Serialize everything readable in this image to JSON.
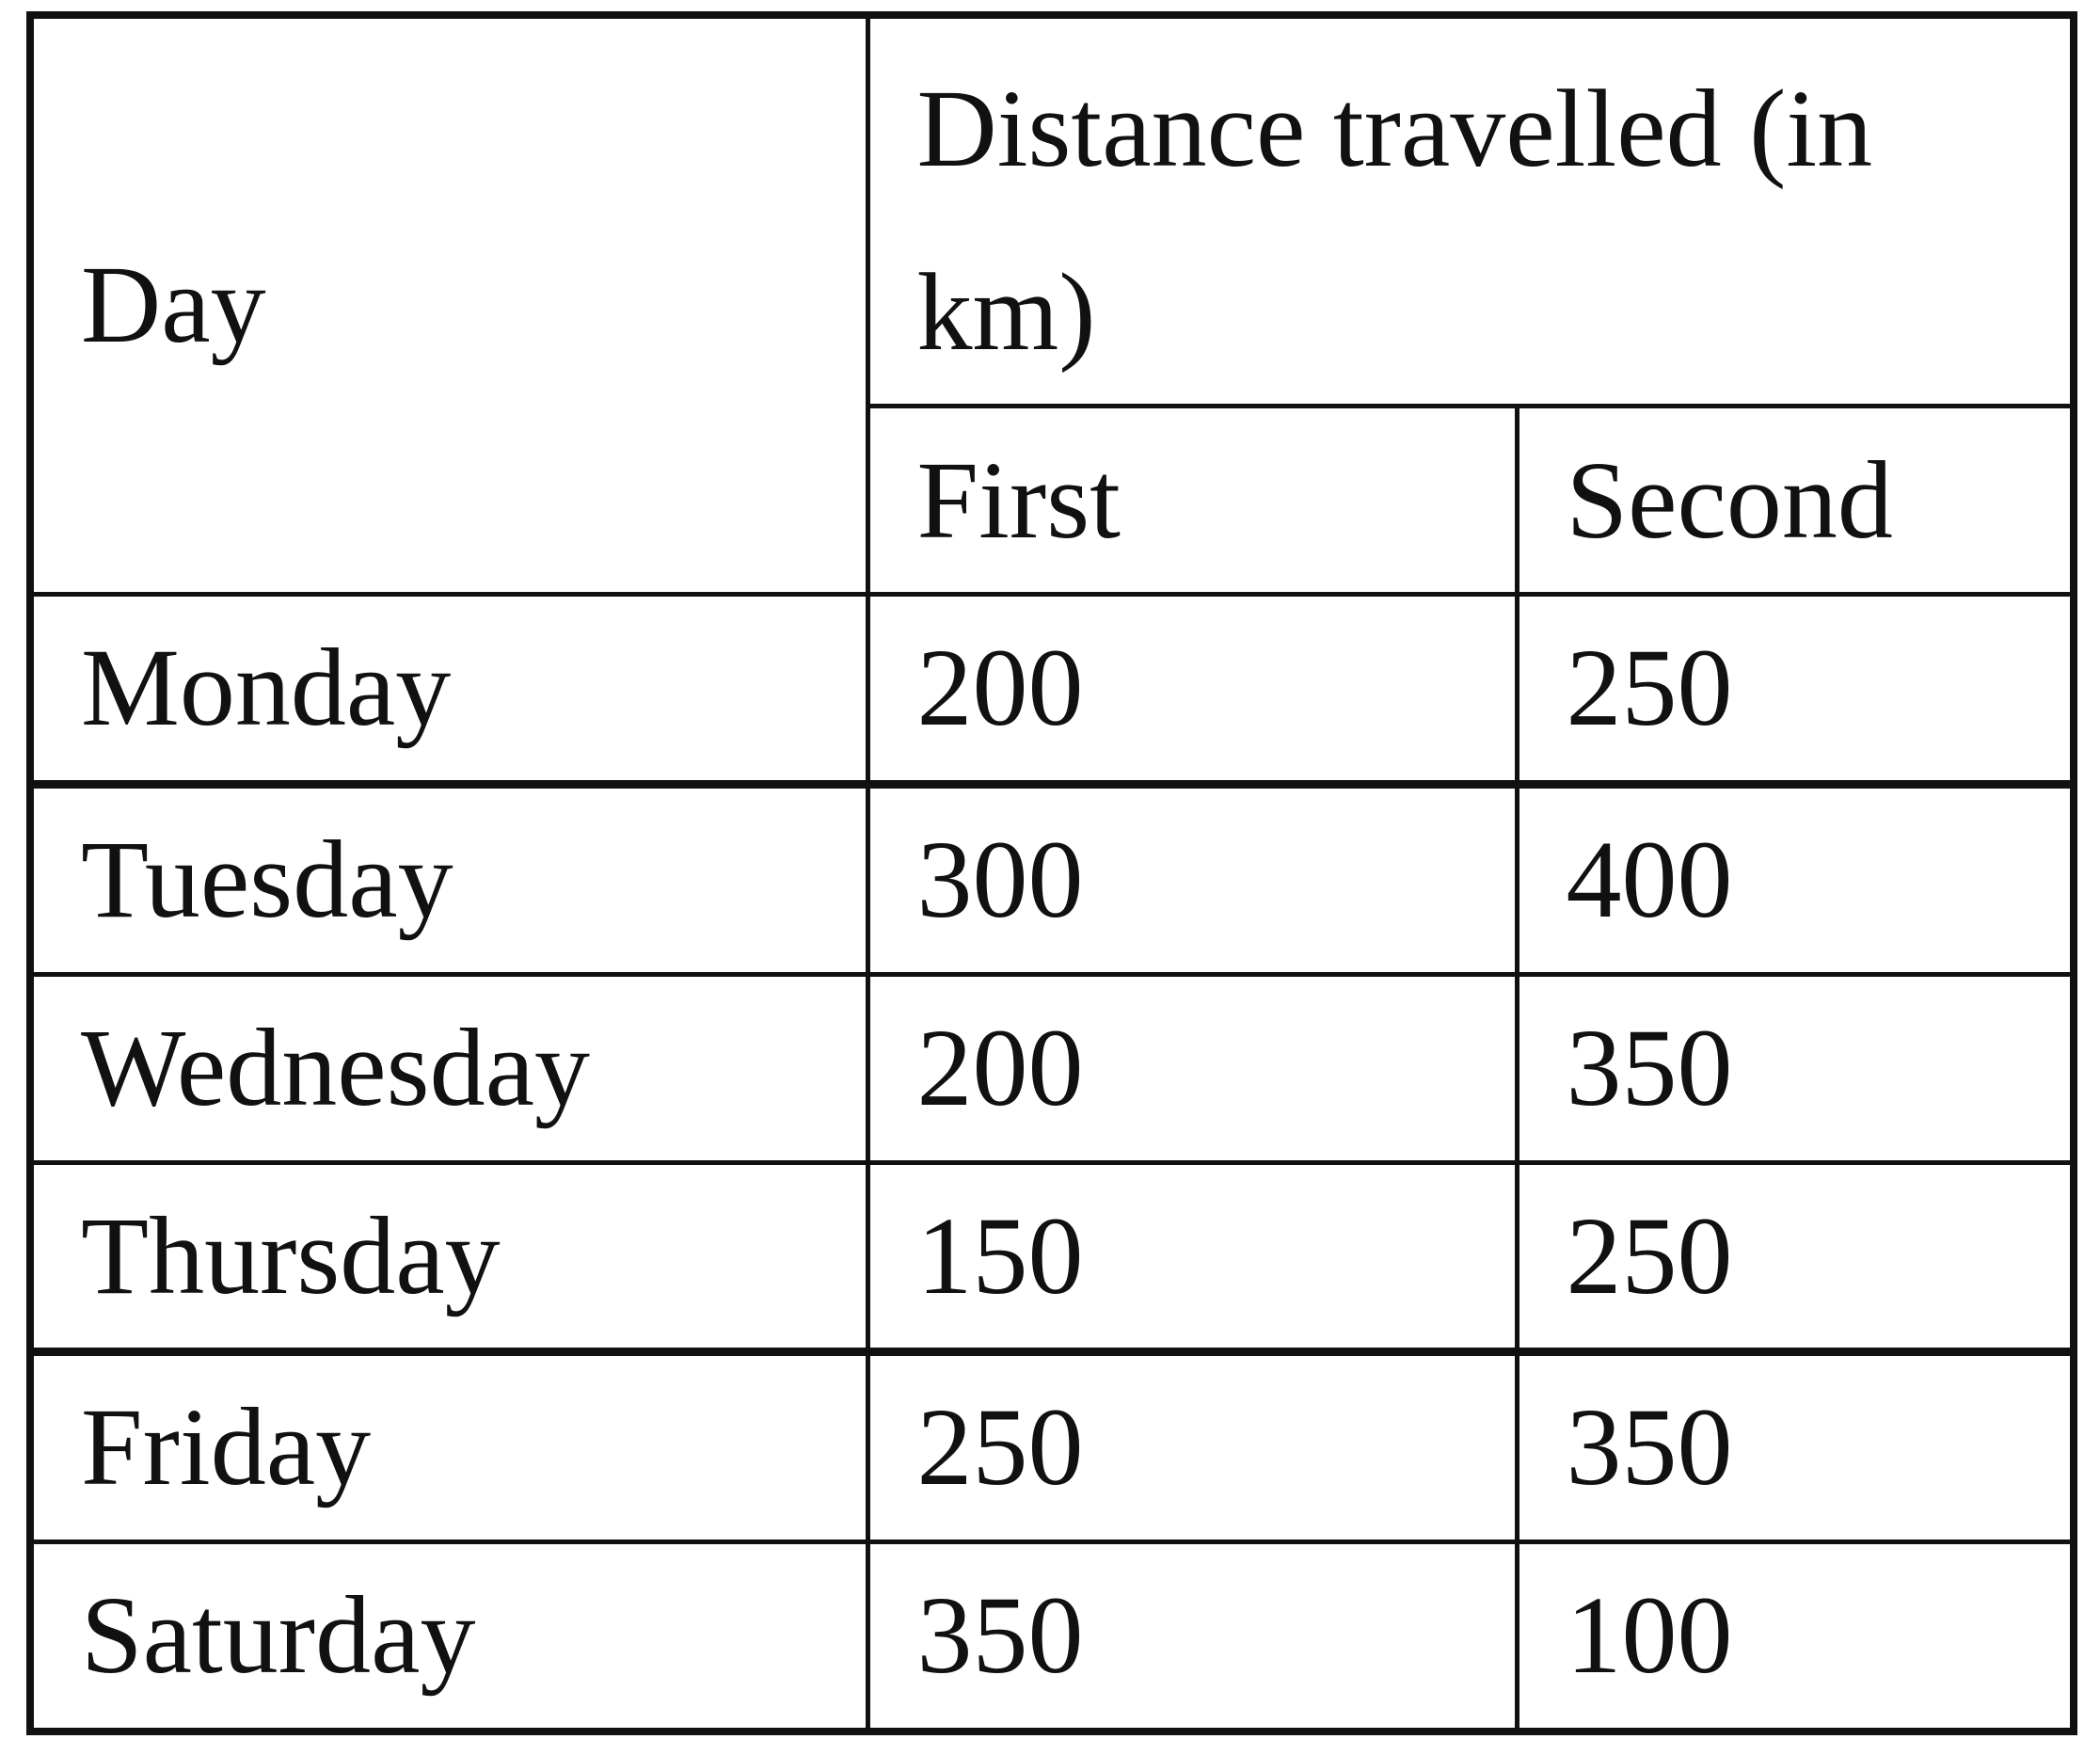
{
  "table": {
    "header": {
      "day": "Day",
      "distance": "Distance travelled (in km)",
      "first": "First",
      "second": "Second"
    },
    "rows": [
      {
        "day": "Monday",
        "first": "200",
        "second": "250"
      },
      {
        "day": "Tuesday",
        "first": "300",
        "second": "400"
      },
      {
        "day": "Wednesday",
        "first": "200",
        "second": "350"
      },
      {
        "day": "Thursday",
        "first": "150",
        "second": "250"
      },
      {
        "day": "Friday",
        "first": "250",
        "second": "350"
      },
      {
        "day": "Saturday",
        "first": "350",
        "second": "100"
      }
    ]
  }
}
